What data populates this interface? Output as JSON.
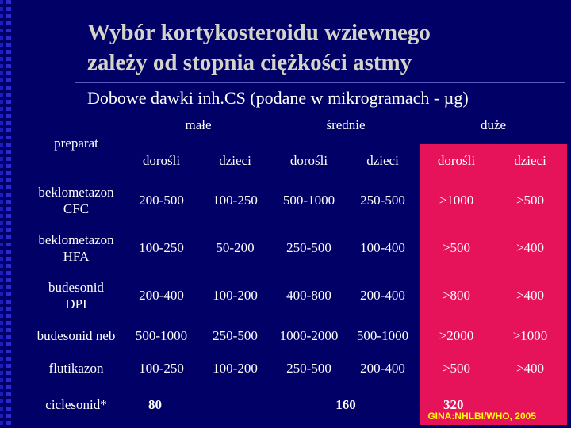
{
  "title": {
    "line1": "Wybór kortykosteroidu wziewnego",
    "line2": "zależy od stopnia ciężkości astmy"
  },
  "subtitle": "Dobowe dawki inh.CS (podane w mikrogramach - µg)",
  "table": {
    "preparat_header": "preparat",
    "groups": [
      "małe",
      "średnie",
      "duże"
    ],
    "subheaders": [
      "dorośli",
      "dzieci",
      "dorośli",
      "dzieci",
      "dorośli",
      "dzieci"
    ],
    "rows": [
      {
        "drug": [
          "beklometazon",
          "CFC"
        ],
        "values": [
          "200-500",
          "100-250",
          "500-1000",
          "250-500",
          ">1000",
          ">500"
        ]
      },
      {
        "drug": [
          "beklometazon",
          "HFA"
        ],
        "values": [
          "100-250",
          "50-200",
          "250-500",
          "100-400",
          ">500",
          ">400"
        ]
      },
      {
        "drug": [
          "budesonid",
          "DPI"
        ],
        "values": [
          "200-400",
          "100-200",
          "400-800",
          "200-400",
          ">800",
          ">400"
        ]
      },
      {
        "drug": [
          "budesonid neb"
        ],
        "values": [
          "500-1000",
          "250-500",
          "1000-2000",
          "500-1000",
          ">2000",
          ">1000"
        ]
      },
      {
        "drug": [
          "flutikazon"
        ],
        "values": [
          "100-250",
          "100-200",
          "250-500",
          "200-400",
          ">500",
          ">400"
        ]
      }
    ],
    "last_row": {
      "drug": "ciclesonid*",
      "values": [
        "80",
        "160",
        "320"
      ]
    }
  },
  "source": "GINA:NHLBI/WHO, 2005",
  "colors": {
    "background": "#000066",
    "highlight": "#e6135a",
    "title": "#d4d4c8",
    "source": "#ffff00"
  }
}
